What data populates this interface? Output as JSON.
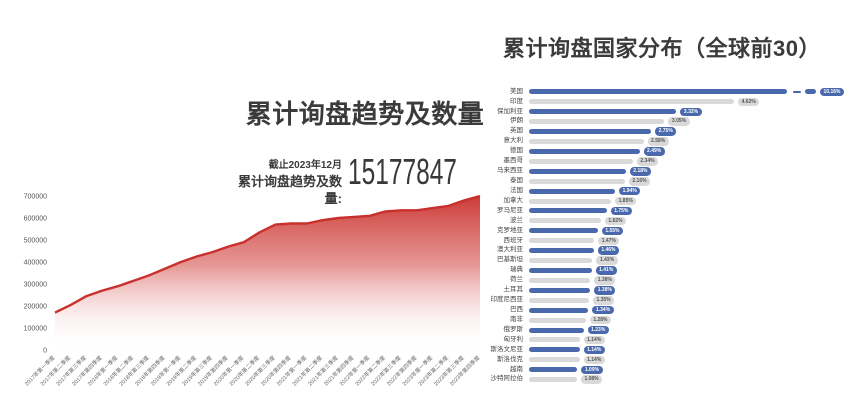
{
  "chart_data": [
    {
      "type": "area",
      "title": "累计询盘趋势及数量",
      "note": "截止2023年12月",
      "stat_label": "累计询盘趋势及数量:",
      "stat_value": "15177847",
      "x": [
        "2017年第一季度",
        "2017年第二季度",
        "2017年第三季度",
        "2017年第四季度",
        "2018年第一季度",
        "2018年第二季度",
        "2018年第三季度",
        "2018年第四季度",
        "2019年第一季度",
        "2019年第二季度",
        "2019年第三季度",
        "2019年第四季度",
        "2020年第一季度",
        "2020年第二季度",
        "2020年第三季度",
        "2020年第四季度",
        "2021年第一季度",
        "2021年第二季度",
        "2021年第三季度",
        "2021年第四季度",
        "2022年第一季度",
        "2022年第二季度",
        "2022年第三季度",
        "2022年第四季度",
        "2023年第一季度",
        "2023年第二季度",
        "2023年第三季度",
        "2023年第四季度"
      ],
      "values": [
        170000,
        205000,
        245000,
        270000,
        290000,
        315000,
        340000,
        370000,
        400000,
        425000,
        445000,
        470000,
        490000,
        535000,
        570000,
        575000,
        575000,
        590000,
        600000,
        605000,
        610000,
        630000,
        635000,
        635000,
        645000,
        655000,
        680000,
        700000
      ],
      "ylim": [
        0,
        700000
      ],
      "yticks": [
        0,
        100000,
        200000,
        300000,
        400000,
        500000,
        600000,
        700000
      ],
      "line_color": "#c9302c",
      "area_gradient_top": "#c9302c",
      "area_gradient_bottom": "#ffffff",
      "grid": false,
      "x_tick_rotation": -45,
      "legend": "none"
    },
    {
      "type": "bar",
      "orientation": "horizontal",
      "title": "累计询盘国家分布（全球前30）",
      "categories": [
        "美国",
        "印度",
        "保加利亚",
        "伊朗",
        "英国",
        "意大利",
        "德国",
        "墨西哥",
        "马来西亚",
        "泰国",
        "法国",
        "加拿大",
        "罗马尼亚",
        "波兰",
        "克罗地亚",
        "西班牙",
        "澳大利亚",
        "巴基斯坦",
        "瑞典",
        "荷兰",
        "土耳其",
        "印度尼西亚",
        "巴西",
        "南非",
        "俄罗斯",
        "匈牙利",
        "斯洛文尼亚",
        "斯洛伐克",
        "越南",
        "沙特阿拉伯"
      ],
      "values": [
        10.16,
        4.62,
        3.32,
        3.05,
        2.75,
        2.58,
        2.49,
        2.34,
        2.18,
        2.16,
        1.94,
        1.85,
        1.75,
        1.62,
        1.55,
        1.47,
        1.46,
        1.43,
        1.41,
        1.38,
        1.38,
        1.35,
        1.34,
        1.28,
        1.23,
        1.14,
        1.14,
        1.14,
        1.09,
        1.08
      ],
      "labels": [
        "10.16%",
        "4.62%",
        "3.32%",
        "3.05%",
        "2.75%",
        "2.58%",
        "2.49%",
        "2.34%",
        "2.18%",
        "2.16%",
        "1.94%",
        "1.85%",
        "1.75%",
        "1.62%",
        "1.55%",
        "1.47%",
        "1.46%",
        "1.43%",
        "1.41%",
        "1.38%",
        "1.38%",
        "1.35%",
        "1.34%",
        "1.28%",
        "1.23%",
        "1.14%",
        "1.14%",
        "1.14%",
        "1.09%",
        "1.08%"
      ],
      "bar_color_primary": "#4a69ad",
      "bar_color_secondary": "#d9d9d9",
      "badge_text_on_primary": "#ffffff",
      "badge_text_on_secondary": "#555555",
      "broken_bar_index": 0,
      "legend": "none"
    }
  ]
}
